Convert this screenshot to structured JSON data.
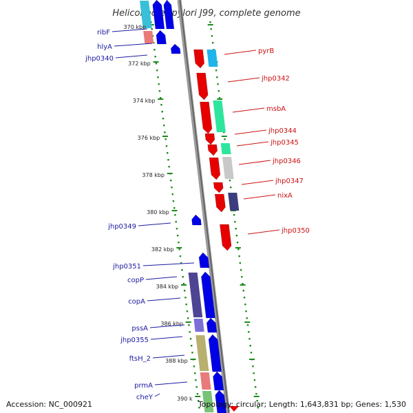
{
  "title": "Helicobacter pylori J99, complete genome",
  "footer": {
    "accession": "Accession: NC_000921",
    "summary": "Topology: circular; Length: 1,643,831 bp; Genes: 1,530"
  },
  "colors": {
    "backbone": "#8a8a8a",
    "forward": "#e60000",
    "reverse": "#0000e6",
    "tick": "#1c8a1c",
    "left_label": "#1a1aa0",
    "right_label": "#cc1111"
  },
  "kbp_labels": [
    {
      "kbp": 370,
      "text": "370 kbp"
    },
    {
      "kbp": 372,
      "text": "372 kbp"
    },
    {
      "kbp": 374,
      "text": "374 kbp"
    },
    {
      "kbp": 376,
      "text": "376 kbp"
    },
    {
      "kbp": 378,
      "text": "378 kbp"
    },
    {
      "kbp": 380,
      "text": "380 kbp"
    },
    {
      "kbp": 382,
      "text": "382 kbp"
    },
    {
      "kbp": 384,
      "text": "384 kbp"
    },
    {
      "kbp": 386,
      "text": "386 kbp"
    },
    {
      "kbp": 388,
      "text": "388 kbp"
    },
    {
      "kbp": 390,
      "text": "390 k"
    }
  ],
  "forward_genes": [
    {
      "name": "pyrB",
      "cog": "#e60000",
      "cog_color2": "#1fb4ea"
    },
    {
      "name": "jhp0342",
      "cog": "#e60000"
    },
    {
      "name": "msbA",
      "cog": "#e60000",
      "cog_color2": "#2ee59e"
    },
    {
      "name": "jhp0344",
      "cog": "#e60000"
    },
    {
      "name": "jhp0345",
      "cog": "#e60000",
      "cog_color2": "#2ee59e"
    },
    {
      "name": "jhp0346",
      "cog": "#e60000",
      "cog_color2": "#c8c8c8"
    },
    {
      "name": "jhp0347",
      "cog": "#e60000"
    },
    {
      "name": "nixA",
      "cog": "#e60000",
      "cog_color2": "#3c3c7e"
    },
    {
      "name": "jhp0350",
      "cog": "#e60000"
    }
  ],
  "reverse_genes": [
    {
      "name": "ribF"
    },
    {
      "name": "hlyA"
    },
    {
      "name": "jhp0340"
    },
    {
      "name": "jhp0349"
    },
    {
      "name": "jhp0351"
    },
    {
      "name": "copP"
    },
    {
      "name": "copA"
    },
    {
      "name": "pssA"
    },
    {
      "name": "jhp0355"
    },
    {
      "name": "ftsH_2"
    },
    {
      "name": "prmA"
    },
    {
      "name": "cheY"
    }
  ]
}
